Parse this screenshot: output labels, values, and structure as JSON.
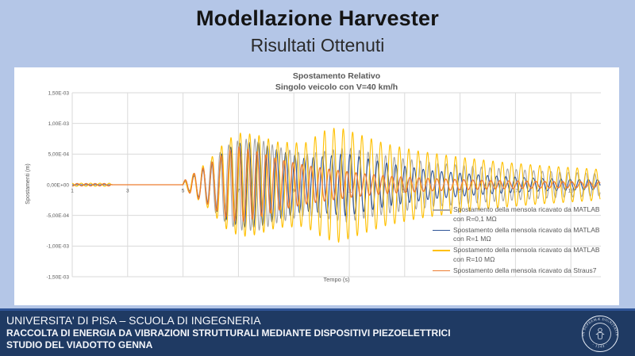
{
  "slide": {
    "title": "Modellazione Harvester",
    "subtitle": "Risultati Ottenuti"
  },
  "colors": {
    "slide_background": "#B4C6E7",
    "panel_background": "#FFFFFF",
    "footer_background": "#1F3A63",
    "footer_accent_line": "#2F5496",
    "grid": "#DADADA",
    "chart_text": "#595959",
    "series_gray": "#A6A6A6",
    "series_blue": "#2F5597",
    "series_yellow": "#FFC000",
    "series_orange": "#ED7D31"
  },
  "chart": {
    "title_line1": "Spostamento Relativo",
    "title_line2": "Singolo veicolo con V=40 km/h",
    "x_axis_title": "Tempo (s)",
    "y_axis_title": "Spostamenti (m)"
  },
  "chart_data": {
    "type": "line",
    "title": "Spostamento Relativo",
    "subtitle": "Singolo veicolo con V=40 km/h",
    "xlabel": "Tempo (s)",
    "ylabel": "Spostamenti (m)",
    "xlim": [
      1,
      20.06
    ],
    "ylim": [
      -0.0015,
      0.0015
    ],
    "grid": true,
    "legend_position": "bottom-right",
    "x_ticks": [
      1,
      3,
      5,
      7,
      9,
      11,
      13,
      15,
      17,
      19
    ],
    "y_ticks": [
      {
        "label": "1,50E-03",
        "value": 0.0015
      },
      {
        "label": "1,00E-03",
        "value": 0.001
      },
      {
        "label": "5,00E-04",
        "value": 0.0005
      },
      {
        "label": "0,00E+00",
        "value": 0.0
      },
      {
        "label": "-5,00E-04",
        "value": -0.0005
      },
      {
        "label": "-1,00E-03",
        "value": -0.001
      },
      {
        "label": "-1,50E-03",
        "value": -0.0015
      }
    ],
    "waveform_note": "Damped transient: flat at 0 until t=5 s, oscillation burst peaking ~t=7 s, secondary peak ~t=10.6 s, slow decay to t=20 s. y(t) = envelope(t) * sin(2*pi*f*(t-5)+phase); envelope keypoints given as [t_s, amplitude_in_1e-4_m].",
    "series": [
      {
        "name": "Spostamento della mensola ricavato da MATLAB con R=0,1 MΩ",
        "color": "#A6A6A6",
        "freq_hz": 3.18,
        "phase_rad": 0.0,
        "envelope_e4": [
          [
            1,
            0
          ],
          [
            4.97,
            0
          ],
          [
            5.05,
            0.6
          ],
          [
            5.35,
            1.6
          ],
          [
            5.9,
            3.4
          ],
          [
            6.6,
            6.4
          ],
          [
            7.1,
            7.4
          ],
          [
            7.7,
            7.5
          ],
          [
            8.4,
            6.2
          ],
          [
            9.4,
            5.0
          ],
          [
            10.3,
            5.6
          ],
          [
            10.9,
            6.1
          ],
          [
            11.6,
            5.4
          ],
          [
            12.6,
            4.5
          ],
          [
            14,
            3.6
          ],
          [
            16,
            2.8
          ],
          [
            18,
            2.2
          ],
          [
            20.1,
            1.8
          ]
        ]
      },
      {
        "name": "Spostamento della mensola ricavato da MATLAB con R=1 MΩ",
        "color": "#2F5597",
        "freq_hz": 3.02,
        "phase_rad": 0.35,
        "envelope_e4": [
          [
            1,
            0
          ],
          [
            4.97,
            0
          ],
          [
            5.05,
            0.5
          ],
          [
            5.35,
            1.3
          ],
          [
            5.9,
            3.0
          ],
          [
            6.6,
            5.9
          ],
          [
            7.1,
            6.9
          ],
          [
            7.7,
            7.0
          ],
          [
            8.4,
            5.7
          ],
          [
            9.4,
            4.3
          ],
          [
            10.3,
            4.7
          ],
          [
            10.9,
            5.1
          ],
          [
            11.6,
            4.3
          ],
          [
            12.6,
            3.3
          ],
          [
            14,
            2.3
          ],
          [
            16,
            1.5
          ],
          [
            18,
            1.0
          ],
          [
            20.1,
            0.8
          ]
        ]
      },
      {
        "name": "Spostamento della mensola ricavato da MATLAB con R=10 MΩ",
        "color": "#FFC000",
        "freq_hz": 2.96,
        "phase_rad": 0.8,
        "envelope_e4": [
          [
            1,
            0.25
          ],
          [
            2.35,
            0.25
          ],
          [
            2.45,
            0
          ],
          [
            4.97,
            0
          ],
          [
            5.05,
            0.6
          ],
          [
            5.35,
            1.7
          ],
          [
            5.9,
            3.8
          ],
          [
            6.6,
            7.4
          ],
          [
            7.1,
            8.5
          ],
          [
            7.7,
            8.1
          ],
          [
            8.4,
            7.0
          ],
          [
            9.4,
            6.8
          ],
          [
            10.1,
            8.8
          ],
          [
            10.6,
            9.4
          ],
          [
            11.3,
            8.3
          ],
          [
            12.3,
            6.7
          ],
          [
            13.5,
            5.5
          ],
          [
            15,
            4.5
          ],
          [
            16.5,
            3.7
          ],
          [
            18,
            3.1
          ],
          [
            20.1,
            2.5
          ]
        ]
      },
      {
        "name": "Spostamento della mensola ricavato da Straus7",
        "color": "#ED7D31",
        "freq_hz": 3.08,
        "phase_rad": 0.15,
        "envelope_e4": [
          [
            1,
            0.2
          ],
          [
            2.35,
            0.2
          ],
          [
            2.45,
            0
          ],
          [
            4.97,
            0
          ],
          [
            5.05,
            0.7
          ],
          [
            5.3,
            1.6
          ],
          [
            5.9,
            3.2
          ],
          [
            6.6,
            5.5
          ],
          [
            7.0,
            6.2
          ],
          [
            7.6,
            5.5
          ],
          [
            8.5,
            4.1
          ],
          [
            9.5,
            3.1
          ],
          [
            10.5,
            2.4
          ],
          [
            11.5,
            1.8
          ],
          [
            12.5,
            1.4
          ],
          [
            14,
            1.0
          ],
          [
            16,
            0.7
          ],
          [
            18,
            0.55
          ],
          [
            20.1,
            0.45
          ]
        ]
      }
    ]
  },
  "legend": {
    "items": [
      {
        "line1": "Spostamento della mensola ricavato da MATLAB",
        "line2": "con R=0,1 MΩ"
      },
      {
        "line1": "Spostamento della mensola ricavato da MATLAB",
        "line2": "con R=1 MΩ"
      },
      {
        "line1": "Spostamento della mensola ricavato da MATLAB",
        "line2": "con R=10 MΩ"
      },
      {
        "line1": "Spostamento della mensola ricavato da Straus7"
      }
    ]
  },
  "footer": {
    "line1": "UNIVERSITA' DI PISA – SCUOLA DI INGEGNERIA",
    "line2": "RACCOLTA DI ENERGIA DA VIBRAZIONI STRUTTURALI MEDIANTE DISPOSITIVI PIEZOELETTRICI",
    "line3": "STUDIO DEL VIADOTTO GENNA"
  },
  "seal": {
    "top_text": "IN SUPREMÆ DIGNITATIS",
    "year": "· 1343 ·"
  }
}
